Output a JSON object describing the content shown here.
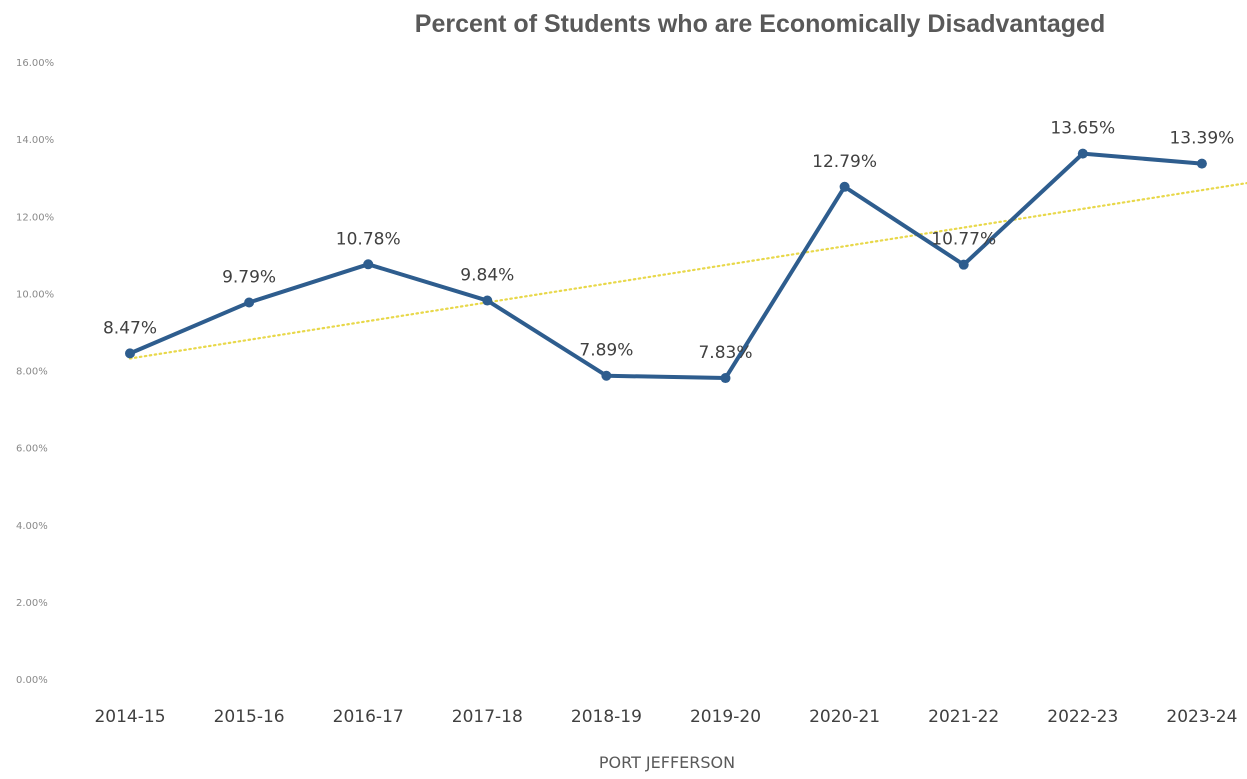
{
  "chart_data": {
    "type": "line",
    "title": "Percent of Students who are Economically Disadvantaged",
    "xlabel": "PORT JEFFERSON",
    "ylabel": "",
    "categories": [
      "2014-15",
      "2015-16",
      "2016-17",
      "2017-18",
      "2018-19",
      "2019-20",
      "2020-21",
      "2021-22",
      "2022-23",
      "2023-24"
    ],
    "series": [
      {
        "values": [
          8.47,
          9.79,
          10.78,
          9.84,
          7.89,
          7.83,
          12.79,
          10.77,
          13.65,
          13.39
        ],
        "data_labels": [
          "8.47%",
          "9.79%",
          "10.78%",
          "9.84%",
          "7.89%",
          "7.83%",
          "12.79%",
          "10.77%",
          "13.65%",
          "13.39%"
        ],
        "color": "#2e5d8e"
      }
    ],
    "trendline": {
      "type": "linear",
      "style": "dotted",
      "color": "#e8d84a"
    },
    "ylim": [
      0,
      16
    ],
    "yticks": [
      0,
      2,
      4,
      6,
      8,
      10,
      12,
      14,
      16
    ],
    "ytick_labels": [
      "0.00%",
      "2.00%",
      "4.00%",
      "6.00%",
      "8.00%",
      "10.00%",
      "12.00%",
      "14.00%",
      "16.00%"
    ],
    "grid": false,
    "legend": "none"
  }
}
